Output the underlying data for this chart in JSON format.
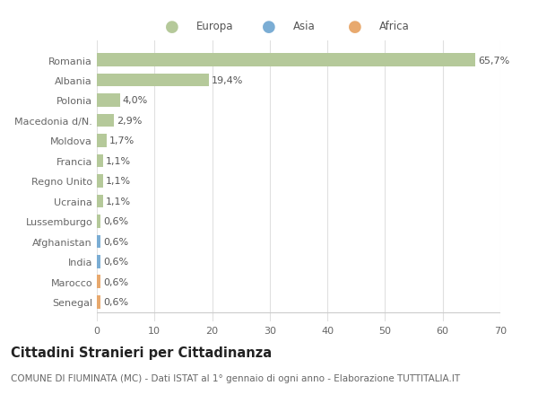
{
  "categories": [
    "Senegal",
    "Marocco",
    "India",
    "Afghanistan",
    "Lussemburgo",
    "Ucraina",
    "Regno Unito",
    "Francia",
    "Moldova",
    "Macedonia d/N.",
    "Polonia",
    "Albania",
    "Romania"
  ],
  "values": [
    0.6,
    0.6,
    0.6,
    0.6,
    0.6,
    1.1,
    1.1,
    1.1,
    1.7,
    2.9,
    4.0,
    19.4,
    65.7
  ],
  "labels": [
    "0,6%",
    "0,6%",
    "0,6%",
    "0,6%",
    "0,6%",
    "1,1%",
    "1,1%",
    "1,1%",
    "1,7%",
    "2,9%",
    "4,0%",
    "19,4%",
    "65,7%"
  ],
  "continents": [
    "Africa",
    "Africa",
    "Asia",
    "Asia",
    "Europa",
    "Europa",
    "Europa",
    "Europa",
    "Europa",
    "Europa",
    "Europa",
    "Europa",
    "Europa"
  ],
  "colors": {
    "Europa": "#b5c99a",
    "Asia": "#7badd4",
    "Africa": "#e8a96e"
  },
  "xlim": [
    0,
    70
  ],
  "xticks": [
    0,
    10,
    20,
    30,
    40,
    50,
    60,
    70
  ],
  "title": "Cittadini Stranieri per Cittadinanza",
  "subtitle": "COMUNE DI FIUMINATA (MC) - Dati ISTAT al 1° gennaio di ogni anno - Elaborazione TUTTITALIA.IT",
  "background_color": "#ffffff",
  "grid_color": "#e0e0e0",
  "bar_height": 0.65,
  "label_fontsize": 8.0,
  "title_fontsize": 10.5,
  "subtitle_fontsize": 7.5,
  "tick_fontsize": 8.0,
  "legend_order": [
    "Europa",
    "Asia",
    "Africa"
  ],
  "legend_colors": [
    "#b5c99a",
    "#7badd4",
    "#e8a96e"
  ]
}
